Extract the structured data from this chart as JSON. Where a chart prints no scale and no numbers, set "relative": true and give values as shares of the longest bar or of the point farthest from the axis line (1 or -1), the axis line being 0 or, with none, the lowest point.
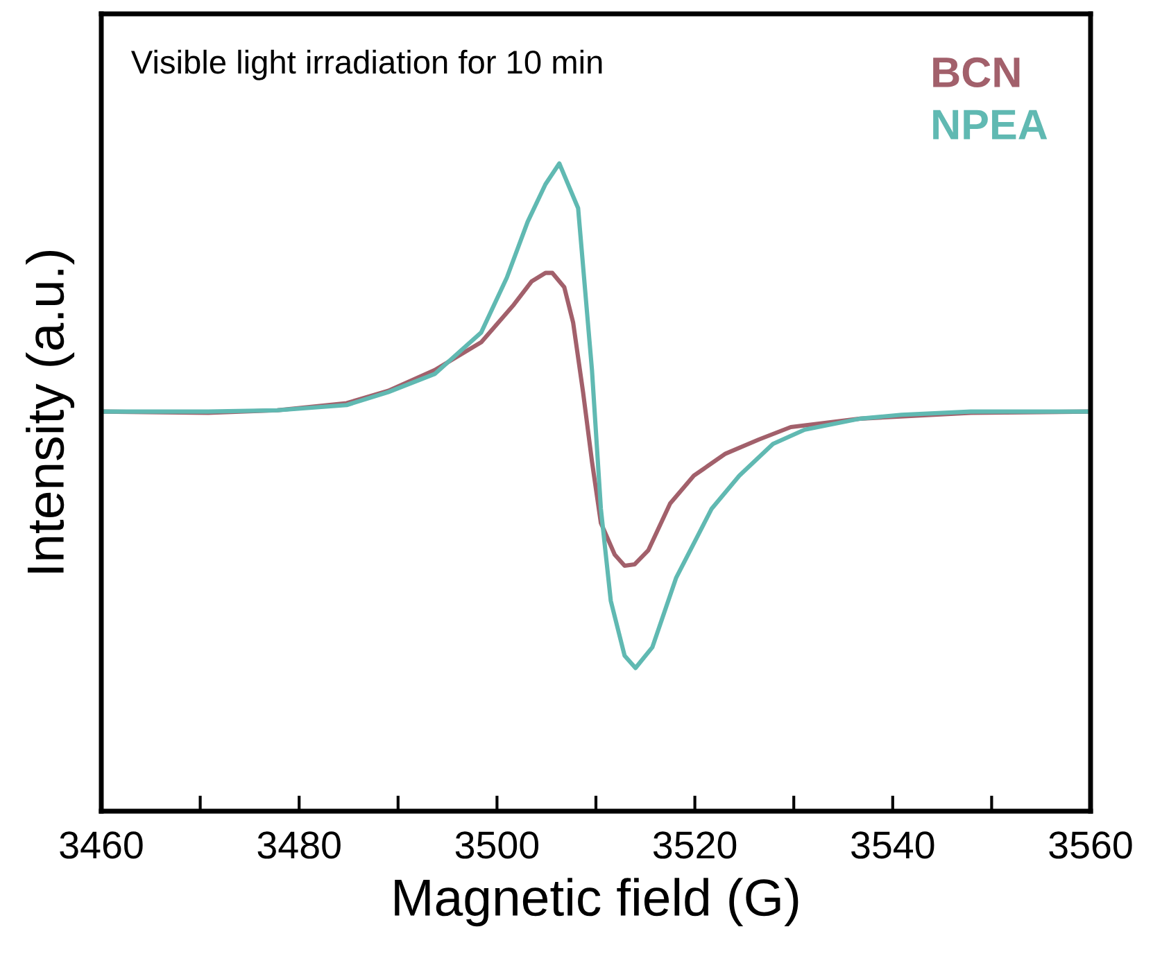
{
  "chart_data": {
    "type": "line",
    "relative": true,
    "xlabel": "Magnetic field (G)",
    "ylabel": "Intensity (a.u.)",
    "annotations": [
      "Visible light irradiation for 10 min"
    ],
    "xlim": [
      3460,
      3560
    ],
    "xticks": [
      3460,
      {
        "value": 3470,
        "label": null
      },
      3480,
      {
        "value": 3490,
        "label": null
      },
      3500,
      {
        "value": 3510,
        "label": null
      },
      3520,
      {
        "value": 3530,
        "label": null
      },
      3540,
      {
        "value": 3550,
        "label": null
      },
      3560
    ],
    "tick_labels": "x",
    "grid": false,
    "legend": "top right",
    "marker": "none",
    "line_style": "solid",
    "series": [
      {
        "name": "BCN",
        "color": "#a2606b",
        "x": [
          3460,
          3470.8,
          3477.8,
          3484.8,
          3489.0,
          3493.7,
          3498.4,
          3501.7,
          3503.5,
          3504.9,
          3505.6,
          3506.8,
          3507.7,
          3508.7,
          3509.6,
          3510.5,
          3511.9,
          3512.9,
          3513.9,
          3515.3,
          3517.5,
          3519.9,
          3523.1,
          3526.5,
          3529.7,
          3536.7,
          3547.9,
          3560
        ],
        "values": [
          0.617,
          0.615,
          0.619,
          0.63,
          0.649,
          0.681,
          0.724,
          0.782,
          0.818,
          0.831,
          0.831,
          0.809,
          0.754,
          0.647,
          0.54,
          0.445,
          0.396,
          0.379,
          0.381,
          0.403,
          0.475,
          0.518,
          0.552,
          0.574,
          0.593,
          0.606,
          0.615,
          0.617
        ]
      },
      {
        "name": "NPEA",
        "color": "#60b9b2",
        "x": [
          3460,
          3470.8,
          3477.8,
          3484.8,
          3489.0,
          3493.7,
          3498.4,
          3501.0,
          3503.1,
          3504.9,
          3506.3,
          3508.2,
          3509.6,
          3510.5,
          3511.5,
          3512.9,
          3514.0,
          3515.7,
          3518.1,
          3521.7,
          3524.5,
          3527.9,
          3531.1,
          3536.7,
          3540.9,
          3547.9,
          3560
        ],
        "values": [
          0.617,
          0.617,
          0.619,
          0.627,
          0.647,
          0.675,
          0.739,
          0.824,
          0.91,
          0.968,
          1.0,
          0.931,
          0.681,
          0.467,
          0.325,
          0.24,
          0.221,
          0.253,
          0.36,
          0.467,
          0.518,
          0.567,
          0.589,
          0.606,
          0.612,
          0.617,
          0.617
        ]
      }
    ]
  }
}
